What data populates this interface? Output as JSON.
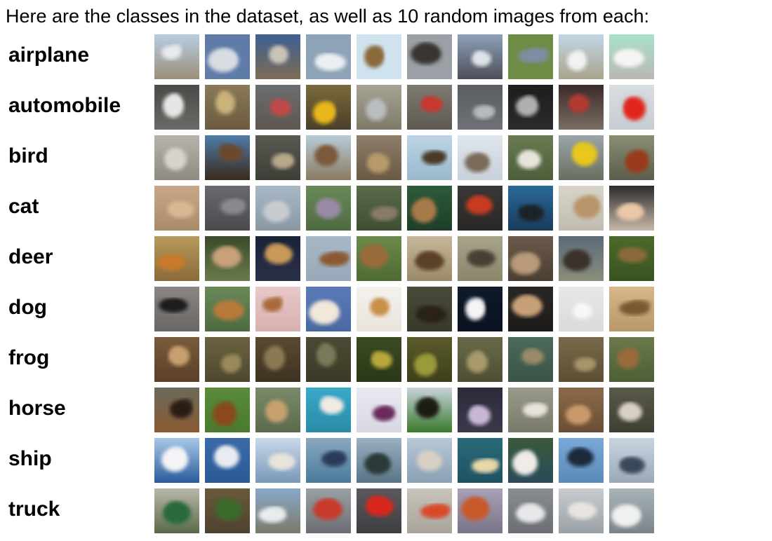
{
  "heading": "Here are the classes in the dataset, as well as 10 random images from each:",
  "images_per_class": 10,
  "classes": [
    {
      "label": "airplane",
      "icon": "airplane-icon",
      "images": [
        {
          "sky": "#b9cde2",
          "ground": "#9a8e7a",
          "subject": "#e8eaee"
        },
        {
          "sky": "#5f7ba8",
          "ground": "#5f7ba8",
          "subject": "#d8dde2"
        },
        {
          "sky": "#3d5f93",
          "ground": "#7d6c55",
          "subject": "#c9c3b8"
        },
        {
          "sky": "#8ea3b8",
          "ground": "#8ea3b8",
          "subject": "#eceff1"
        },
        {
          "sky": "#cfe3ef",
          "ground": "#cfe3ef",
          "subject": "#8a6a3a"
        },
        {
          "sky": "#9aa0a6",
          "ground": "#9aa0a6",
          "subject": "#3b3430"
        },
        {
          "sky": "#8ca0b8",
          "ground": "#4d5058",
          "subject": "#dfe3e8"
        },
        {
          "sky": "#6e8c45",
          "ground": "#6e8c45",
          "subject": "#7c8ea6"
        },
        {
          "sky": "#c2d6e6",
          "ground": "#a9a48c",
          "subject": "#f2f2f2"
        },
        {
          "sky": "#a9e0c8",
          "ground": "#b8b8b2",
          "subject": "#f4f4f4"
        }
      ]
    },
    {
      "label": "automobile",
      "icon": "car-icon",
      "images": [
        {
          "sky": "#4a4a48",
          "ground": "#6a6a66",
          "subject": "#e6e6e6"
        },
        {
          "sky": "#8a7a5a",
          "ground": "#6b5a3f",
          "subject": "#c9b37a"
        },
        {
          "sky": "#6b6e70",
          "ground": "#5d5650",
          "subject": "#c04a4a"
        },
        {
          "sky": "#7a6a3a",
          "ground": "#4a3f2a",
          "subject": "#e8b81f"
        },
        {
          "sky": "#a8a494",
          "ground": "#7e7a6a",
          "subject": "#b9bdbf"
        },
        {
          "sky": "#7e7a72",
          "ground": "#5e5a52",
          "subject": "#c8382e"
        },
        {
          "sky": "#5a5e62",
          "ground": "#6e7276",
          "subject": "#b7babe"
        },
        {
          "sky": "#1e1c1c",
          "ground": "#2c2a2a",
          "subject": "#b0b0b2"
        },
        {
          "sky": "#3a2a28",
          "ground": "#7a6e64",
          "subject": "#b23a32"
        },
        {
          "sky": "#d8dde2",
          "ground": "#c6ccd2",
          "subject": "#e0281e"
        }
      ]
    },
    {
      "label": "bird",
      "icon": "bird-icon",
      "images": [
        {
          "sky": "#b8b4ac",
          "ground": "#8e8a82",
          "subject": "#d8d4cc"
        },
        {
          "sky": "#4f7ca8",
          "ground": "#3a2a1c",
          "subject": "#6a4a2a"
        },
        {
          "sky": "#5a5a52",
          "ground": "#3e3e38",
          "subject": "#b8a88a"
        },
        {
          "sky": "#b8ccd8",
          "ground": "#8a7a62",
          "subject": "#7a5a3a"
        },
        {
          "sky": "#8e7e6a",
          "ground": "#6a5a44",
          "subject": "#b89a6a"
        },
        {
          "sky": "#bcd4e6",
          "ground": "#9ab8cc",
          "subject": "#4a3a2a"
        },
        {
          "sky": "#dfe6ec",
          "ground": "#c8d0d8",
          "subject": "#7a6a5a"
        },
        {
          "sky": "#6a7a52",
          "ground": "#4e5e3a",
          "subject": "#e8e4dc"
        },
        {
          "sky": "#9aa4aa",
          "ground": "#6a6e60",
          "subject": "#e8c81a"
        },
        {
          "sky": "#8a8e74",
          "ground": "#5a5e4a",
          "subject": "#9a3a1e"
        }
      ]
    },
    {
      "label": "cat",
      "icon": "cat-icon",
      "images": [
        {
          "sky": "#c8a888",
          "ground": "#a88a6a",
          "subject": "#d8b894"
        },
        {
          "sky": "#6a6a6e",
          "ground": "#4a4a4e",
          "subject": "#8a8a8e"
        },
        {
          "sky": "#a8b8c4",
          "ground": "#8a98a4",
          "subject": "#c8ccd0"
        },
        {
          "sky": "#6a8a5a",
          "ground": "#4e6a40",
          "subject": "#9a8aa8"
        },
        {
          "sky": "#5a6a4a",
          "ground": "#3e4e32",
          "subject": "#8a7a6a"
        },
        {
          "sky": "#2e5a3a",
          "ground": "#1e3e28",
          "subject": "#a87a4a"
        },
        {
          "sky": "#3a3836",
          "ground": "#2a2826",
          "subject": "#c83a22"
        },
        {
          "sky": "#2a6a9a",
          "ground": "#1a3a5a",
          "subject": "#1e2228"
        },
        {
          "sky": "#d8d4c8",
          "ground": "#c0bcb0",
          "subject": "#b8946a"
        },
        {
          "sky": "#2a2a2c",
          "ground": "#c8b8a8",
          "subject": "#e8c8a8"
        }
      ]
    },
    {
      "label": "deer",
      "icon": "deer-icon",
      "images": [
        {
          "sky": "#b89a5a",
          "ground": "#8a6a3a",
          "subject": "#c87a2a"
        },
        {
          "sky": "#3a4a2a",
          "ground": "#6a7a4a",
          "subject": "#c8a07a"
        },
        {
          "sky": "#1a2238",
          "ground": "#2a3048",
          "subject": "#c89a5a"
        },
        {
          "sky": "#a8b8c8",
          "ground": "#98a8b8",
          "subject": "#8a5a32"
        },
        {
          "sky": "#6a8a4a",
          "ground": "#4e6a34",
          "subject": "#9a6a3a"
        },
        {
          "sky": "#c8b89a",
          "ground": "#9a8a6a",
          "subject": "#5a4028"
        },
        {
          "sky": "#a8a48a",
          "ground": "#8a866a",
          "subject": "#4a4036"
        },
        {
          "sky": "#6a5a4a",
          "ground": "#4a3e32",
          "subject": "#b89a7a"
        },
        {
          "sky": "#5a6a7a",
          "ground": "#8a8e7a",
          "subject": "#3a322a"
        },
        {
          "sky": "#4a6a2a",
          "ground": "#3a5222",
          "subject": "#8a6a3a"
        }
      ]
    },
    {
      "label": "dog",
      "icon": "dog-icon",
      "images": [
        {
          "sky": "#8a8684",
          "ground": "#6a6664",
          "subject": "#1e1c1c"
        },
        {
          "sky": "#6a8a5a",
          "ground": "#4e6a40",
          "subject": "#b87a3a"
        },
        {
          "sky": "#e8c8c8",
          "ground": "#d8b0b0",
          "subject": "#a86a3a"
        },
        {
          "sky": "#5a7ab8",
          "ground": "#4a68a0",
          "subject": "#f0e8d8"
        },
        {
          "sky": "#f4f2ee",
          "ground": "#e8e4dc",
          "subject": "#c8904a"
        },
        {
          "sky": "#4a4a3a",
          "ground": "#3a3a2a",
          "subject": "#2a2018"
        },
        {
          "sky": "#0e1a2a",
          "ground": "#0a1220",
          "subject": "#f4f4f6"
        },
        {
          "sky": "#2a2624",
          "ground": "#1e1a18",
          "subject": "#c8a078"
        },
        {
          "sky": "#e8e8ea",
          "ground": "#dadadc",
          "subject": "#f8f8f8"
        },
        {
          "sky": "#d8b888",
          "ground": "#b89868",
          "subject": "#7a5a32"
        }
      ]
    },
    {
      "label": "frog",
      "icon": "frog-icon",
      "images": [
        {
          "sky": "#7a5a3a",
          "ground": "#5a4028",
          "subject": "#c8a070"
        },
        {
          "sky": "#6a6240",
          "ground": "#4e4830",
          "subject": "#9a8a5a"
        },
        {
          "sky": "#5a4a32",
          "ground": "#3e3222",
          "subject": "#8a7a52"
        },
        {
          "sky": "#4a4a34",
          "ground": "#3a3a26",
          "subject": "#7a7a5a"
        },
        {
          "sky": "#3a4a22",
          "ground": "#2a3818",
          "subject": "#b8a83a"
        },
        {
          "sky": "#5a5a2a",
          "ground": "#3e3e1c",
          "subject": "#9a9a3a"
        },
        {
          "sky": "#6a6a4a",
          "ground": "#4e4e34",
          "subject": "#a89a6a"
        },
        {
          "sky": "#4a6a5a",
          "ground": "#3a5446",
          "subject": "#9a8a6a"
        },
        {
          "sky": "#7a6a4a",
          "ground": "#5a4e34",
          "subject": "#a8946a"
        },
        {
          "sky": "#6a7a4a",
          "ground": "#4e5e36",
          "subject": "#9a6a3a"
        }
      ]
    },
    {
      "label": "horse",
      "icon": "horse-icon",
      "images": [
        {
          "sky": "#6a6a5a",
          "ground": "#8a5a32",
          "subject": "#2a1e14"
        },
        {
          "sky": "#5a8a3a",
          "ground": "#4a7a2e",
          "subject": "#8a4a1e"
        },
        {
          "sky": "#7a8a6a",
          "ground": "#5a6a4a",
          "subject": "#c8a070"
        },
        {
          "sky": "#3aa8c8",
          "ground": "#2a8aa8",
          "subject": "#f0ece4"
        },
        {
          "sky": "#e8e8f0",
          "ground": "#d8d8e4",
          "subject": "#6a2a5a"
        },
        {
          "sky": "#c8d4dc",
          "ground": "#3a7a2a",
          "subject": "#1e1a16"
        },
        {
          "sky": "#2a2a3a",
          "ground": "#3a3a4a",
          "subject": "#c8b8d8"
        },
        {
          "sky": "#9a9a8a",
          "ground": "#7a7a6a",
          "subject": "#e8e4dc"
        },
        {
          "sky": "#8a6a4a",
          "ground": "#6a4e34",
          "subject": "#c89a6a"
        },
        {
          "sky": "#5a5a4a",
          "ground": "#3e3e32",
          "subject": "#d8d0c4"
        }
      ]
    },
    {
      "label": "ship",
      "icon": "ship-icon",
      "images": [
        {
          "sky": "#a8c8e8",
          "ground": "#2a5a9a",
          "subject": "#f4f4f6"
        },
        {
          "sky": "#3a6aa8",
          "ground": "#2a5a98",
          "subject": "#e8ecf0"
        },
        {
          "sky": "#c8d8e8",
          "ground": "#7a98b8",
          "subject": "#e8e4dc"
        },
        {
          "sky": "#8aa8c0",
          "ground": "#4a7a9a",
          "subject": "#2a3a5a"
        },
        {
          "sky": "#9ab0c0",
          "ground": "#5a7488",
          "subject": "#2a3a38"
        },
        {
          "sky": "#b8c8d8",
          "ground": "#8aa0b4",
          "subject": "#d8d0c4"
        },
        {
          "sky": "#2a6a7a",
          "ground": "#1e5262",
          "subject": "#e8d8a8"
        },
        {
          "sky": "#3a5a3a",
          "ground": "#2a4a5a",
          "subject": "#f0ece8"
        },
        {
          "sky": "#7aa8d8",
          "ground": "#5a8ab8",
          "subject": "#1e2a3a"
        },
        {
          "sky": "#c8d4e0",
          "ground": "#9aa8b8",
          "subject": "#3a4a5a"
        }
      ]
    },
    {
      "label": "truck",
      "icon": "truck-icon",
      "images": [
        {
          "sky": "#b8b8a8",
          "ground": "#5a6a4a",
          "subject": "#2a6a3a"
        },
        {
          "sky": "#6a5a3a",
          "ground": "#4e4230",
          "subject": "#3a6a2a"
        },
        {
          "sky": "#8aa8c8",
          "ground": "#7a7a6a",
          "subject": "#e8ecec"
        },
        {
          "sky": "#9aa0a4",
          "ground": "#6a6e72",
          "subject": "#c83a2a"
        },
        {
          "sky": "#5a5a5e",
          "ground": "#3e3e42",
          "subject": "#d8281e"
        },
        {
          "sky": "#c8c4bc",
          "ground": "#a8a49c",
          "subject": "#d84a2a"
        },
        {
          "sky": "#a8a0b8",
          "ground": "#7a7488",
          "subject": "#c85a2a"
        },
        {
          "sky": "#8a8e92",
          "ground": "#6a6e72",
          "subject": "#e8e8ea"
        },
        {
          "sky": "#c8ccd0",
          "ground": "#9aa0a4",
          "subject": "#e8e4e0"
        },
        {
          "sky": "#a8b4b8",
          "ground": "#7a8488",
          "subject": "#f0f0f0"
        }
      ]
    }
  ]
}
